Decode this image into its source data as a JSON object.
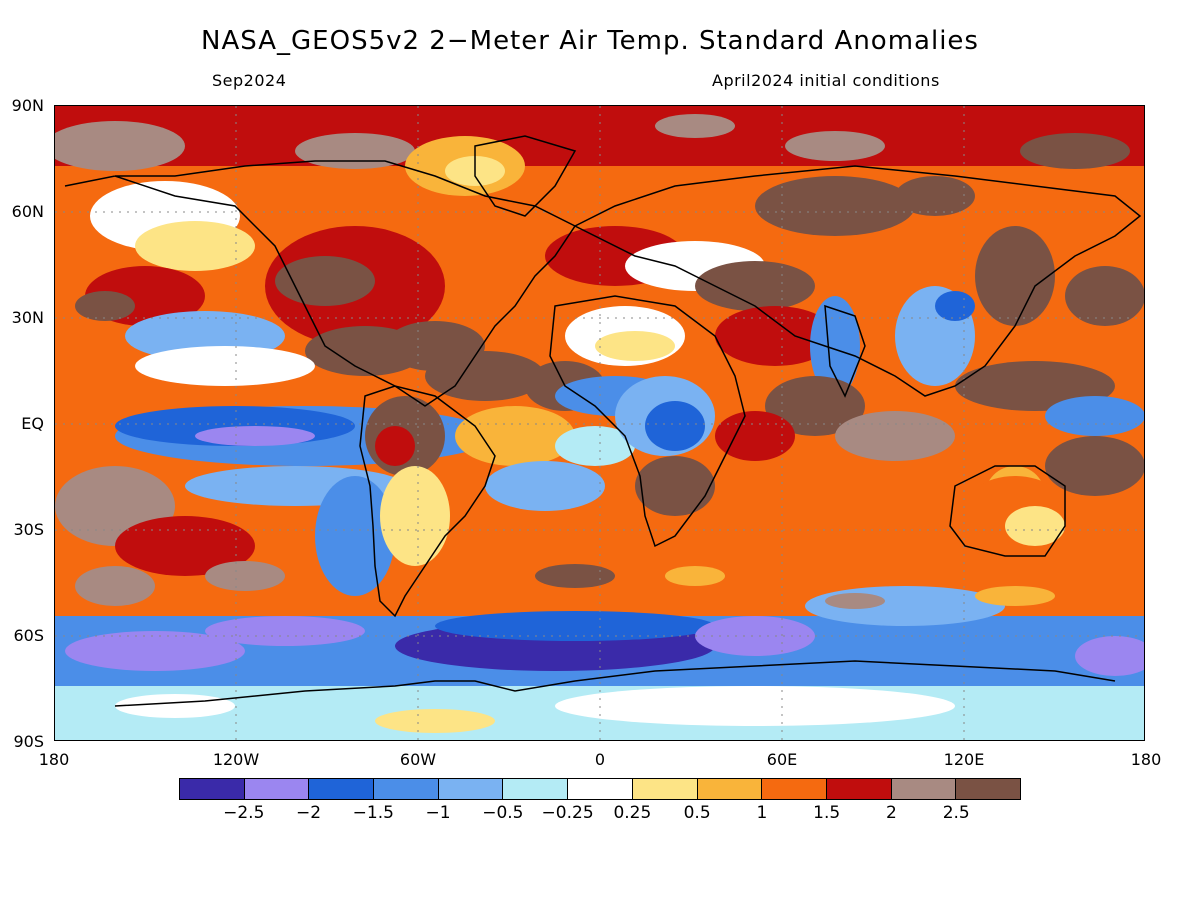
{
  "title": "NASA_GEOS5v2 2−Meter Air Temp. Standard Anomalies",
  "subtitle_left": "Sep2024",
  "subtitle_right": "April2024 initial conditions",
  "lat_labels": [
    "90N",
    "60N",
    "30N",
    "EQ",
    "30S",
    "60S",
    "90S"
  ],
  "lon_labels": [
    "180",
    "120W",
    "60W",
    "0",
    "60E",
    "120E",
    "180"
  ],
  "colorbar": {
    "colors": [
      "#3a2aa9",
      "#9b86f0",
      "#1f64d8",
      "#4b8ee8",
      "#7ab2f2",
      "#b4ebf5",
      "#ffffff",
      "#fde486",
      "#f9b43a",
      "#f56a10",
      "#c00d0d",
      "#a88a82",
      "#7a5244"
    ],
    "labels": [
      "−2.5",
      "−2",
      "−1.5",
      "−1",
      "−0.5",
      "−0.25",
      "0.25",
      "0.5",
      "1",
      "1.5",
      "2",
      "2.5"
    ]
  }
}
